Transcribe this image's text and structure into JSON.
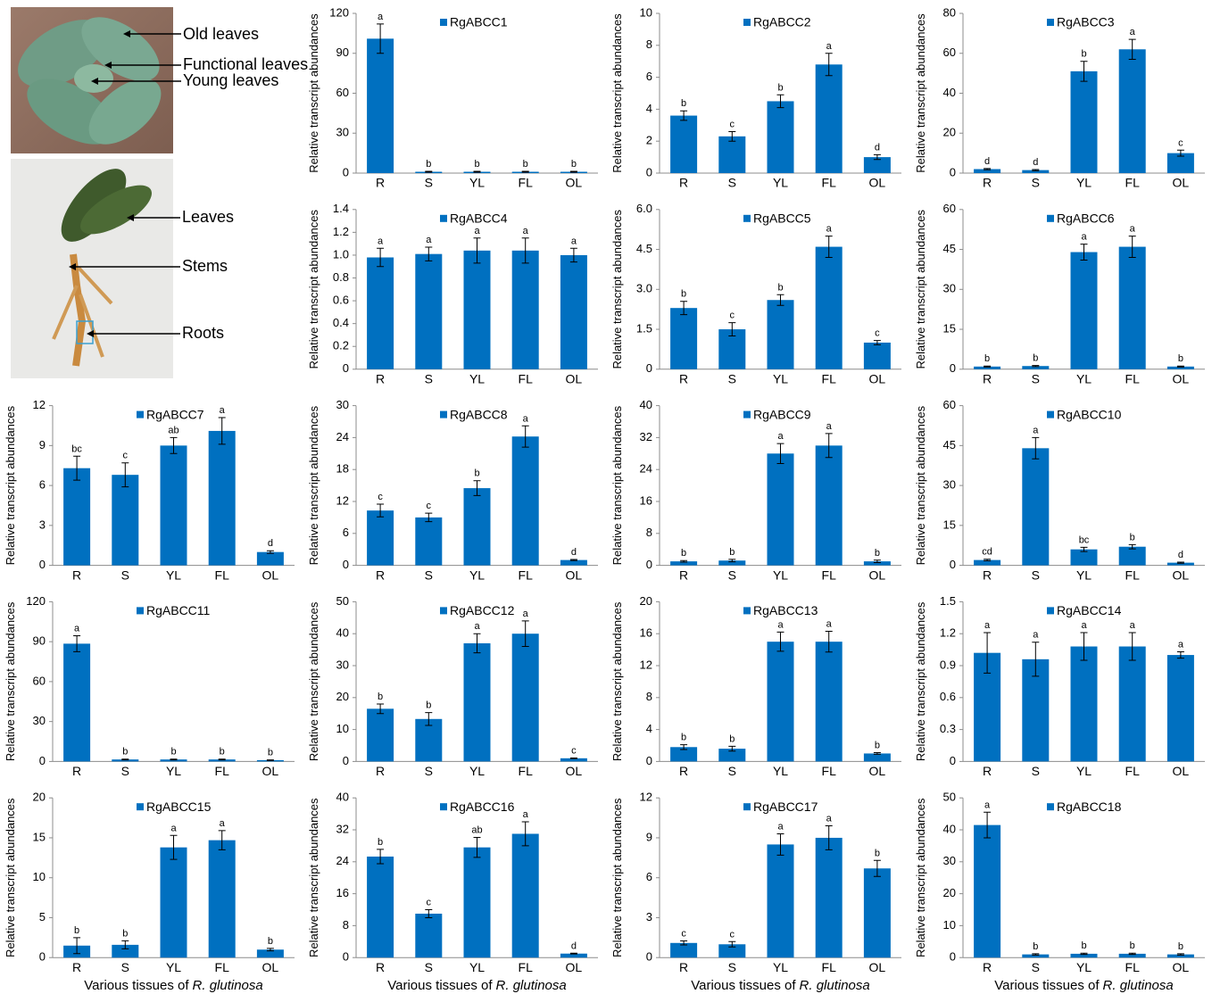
{
  "photo_labels": [
    "Old leaves",
    "Functional leaves",
    "Young leaves",
    "Leaves",
    "Stems",
    "Roots"
  ],
  "chart_data": [
    {
      "type": "bar",
      "legend": "RgABCC1",
      "ylabel": "Relative transcript abundances",
      "color": "#0070c0",
      "categories": [
        "R",
        "S",
        "YL",
        "FL",
        "OL"
      ],
      "values": [
        101,
        1,
        1,
        1,
        1
      ],
      "errors": [
        11,
        0.3,
        0.3,
        0.3,
        0.3
      ],
      "annotations": [
        "a",
        "b",
        "b",
        "b",
        "b"
      ],
      "ylim": [
        0,
        120
      ],
      "yticks": [
        0,
        30,
        60,
        90,
        120
      ]
    },
    {
      "type": "bar",
      "legend": "RgABCC2",
      "ylabel": "Relative transcript abundances",
      "color": "#0070c0",
      "categories": [
        "R",
        "S",
        "YL",
        "FL",
        "OL"
      ],
      "values": [
        3.6,
        2.3,
        4.5,
        6.8,
        1
      ],
      "errors": [
        0.3,
        0.3,
        0.4,
        0.7,
        0.15
      ],
      "annotations": [
        "b",
        "c",
        "b",
        "a",
        "d"
      ],
      "ylim": [
        0,
        10
      ],
      "yticks": [
        0,
        2,
        4,
        6,
        8,
        10
      ]
    },
    {
      "type": "bar",
      "legend": "RgABCC3",
      "ylabel": "Relative transcript abundances",
      "color": "#0070c0",
      "categories": [
        "R",
        "S",
        "YL",
        "FL",
        "OL"
      ],
      "values": [
        2,
        1.5,
        51,
        62,
        10
      ],
      "errors": [
        0.3,
        0.3,
        5,
        5,
        1.5
      ],
      "annotations": [
        "d",
        "d",
        "b",
        "a",
        "c"
      ],
      "ylim": [
        0,
        80
      ],
      "yticks": [
        0,
        20,
        40,
        60,
        80
      ]
    },
    {
      "type": "bar",
      "legend": "RgABCC4",
      "ylabel": "Relative transcript abundances",
      "color": "#0070c0",
      "categories": [
        "R",
        "S",
        "YL",
        "FL",
        "OL"
      ],
      "values": [
        0.98,
        1.01,
        1.04,
        1.04,
        1.0
      ],
      "errors": [
        0.08,
        0.06,
        0.11,
        0.11,
        0.06
      ],
      "annotations": [
        "a",
        "a",
        "a",
        "a",
        "a"
      ],
      "ylim": [
        0,
        1.4
      ],
      "yticks": [
        0,
        0.2,
        0.4,
        0.6,
        0.8,
        {
          "value": 1,
          "label": "1.0"
        },
        1.2,
        1.4
      ]
    },
    {
      "type": "bar",
      "legend": "RgABCC5",
      "ylabel": "Relative transcript abundances",
      "color": "#0070c0",
      "categories": [
        "R",
        "S",
        "YL",
        "FL",
        "OL"
      ],
      "values": [
        2.3,
        1.5,
        2.6,
        4.6,
        1
      ],
      "errors": [
        0.25,
        0.25,
        0.2,
        0.4,
        0.08
      ],
      "annotations": [
        "b",
        "c",
        "b",
        "a",
        "c"
      ],
      "ylim": [
        0,
        6
      ],
      "yticks": [
        0,
        1.5,
        {
          "value": 3,
          "label": "3.0"
        },
        4.5,
        {
          "value": 6,
          "label": "6.0"
        }
      ]
    },
    {
      "type": "bar",
      "legend": "RgABCC6",
      "ylabel": "Relative transcript abundances",
      "color": "#0070c0",
      "categories": [
        "R",
        "S",
        "YL",
        "FL",
        "OL"
      ],
      "values": [
        1,
        1.2,
        44,
        46,
        1
      ],
      "errors": [
        0.2,
        0.2,
        3,
        4,
        0.2
      ],
      "annotations": [
        "b",
        "b",
        "a",
        "a",
        "b"
      ],
      "ylim": [
        0,
        60
      ],
      "yticks": [
        0,
        15,
        30,
        45,
        60
      ]
    },
    {
      "type": "bar",
      "legend": "RgABCC7",
      "ylabel": "Relative transcript abundances",
      "color": "#0070c0",
      "categories": [
        "R",
        "S",
        "YL",
        "FL",
        "OL"
      ],
      "values": [
        7.3,
        6.8,
        9,
        10.1,
        1
      ],
      "errors": [
        0.9,
        0.9,
        0.6,
        1,
        0.1
      ],
      "annotations": [
        "bc",
        "c",
        "ab",
        "a",
        "d"
      ],
      "ylim": [
        0,
        12
      ],
      "yticks": [
        0,
        3,
        6,
        9,
        12
      ]
    },
    {
      "type": "bar",
      "legend": "RgABCC8",
      "ylabel": "Relative transcript abundances",
      "color": "#0070c0",
      "categories": [
        "R",
        "S",
        "YL",
        "FL",
        "OL"
      ],
      "values": [
        10.3,
        9,
        14.5,
        24.2,
        1
      ],
      "errors": [
        1.2,
        0.8,
        1.4,
        2,
        0.1
      ],
      "annotations": [
        "c",
        "c",
        "b",
        "a",
        "d"
      ],
      "ylim": [
        0,
        30
      ],
      "yticks": [
        0,
        6,
        12,
        18,
        24,
        30
      ]
    },
    {
      "type": "bar",
      "legend": "RgABCC9",
      "ylabel": "Relative transcript abundances",
      "color": "#0070c0",
      "categories": [
        "R",
        "S",
        "YL",
        "FL",
        "OL"
      ],
      "values": [
        1,
        1.2,
        28,
        30,
        1
      ],
      "errors": [
        0.2,
        0.3,
        2.5,
        3,
        0.3
      ],
      "annotations": [
        "b",
        "b",
        "a",
        "a",
        "b"
      ],
      "ylim": [
        0,
        40
      ],
      "yticks": [
        0,
        8,
        16,
        24,
        32,
        40
      ]
    },
    {
      "type": "bar",
      "legend": "RgABCC10",
      "ylabel": "Relative transcript abundances",
      "color": "#0070c0",
      "categories": [
        "R",
        "S",
        "YL",
        "FL",
        "OL"
      ],
      "values": [
        2,
        44,
        6,
        7,
        1
      ],
      "errors": [
        0.3,
        4,
        0.8,
        0.8,
        0.2
      ],
      "annotations": [
        "cd",
        "a",
        "bc",
        "b",
        "d"
      ],
      "ylim": [
        0,
        60
      ],
      "yticks": [
        0,
        15,
        30,
        45,
        60
      ]
    },
    {
      "type": "bar",
      "legend": "RgABCC11",
      "ylabel": "Relative transcript abundances",
      "color": "#0070c0",
      "categories": [
        "R",
        "S",
        "YL",
        "FL",
        "OL"
      ],
      "values": [
        88.5,
        1.5,
        1.5,
        1.5,
        1
      ],
      "errors": [
        6,
        0.3,
        0.3,
        0.3,
        0.2
      ],
      "annotations": [
        "a",
        "b",
        "b",
        "b",
        "b"
      ],
      "ylim": [
        0,
        120
      ],
      "yticks": [
        0,
        30,
        60,
        90,
        120
      ]
    },
    {
      "type": "bar",
      "legend": "RgABCC12",
      "ylabel": "Relative transcript abundances",
      "color": "#0070c0",
      "categories": [
        "R",
        "S",
        "YL",
        "FL",
        "OL"
      ],
      "values": [
        16.5,
        13.3,
        37,
        40,
        1
      ],
      "errors": [
        1.5,
        2,
        3,
        4,
        0.1
      ],
      "annotations": [
        "b",
        "b",
        "a",
        "a",
        "c"
      ],
      "ylim": [
        0,
        50
      ],
      "yticks": [
        0,
        10,
        20,
        30,
        40,
        50
      ]
    },
    {
      "type": "bar",
      "legend": "RgABCC13",
      "ylabel": "Relative transcript abundances",
      "color": "#0070c0",
      "categories": [
        "R",
        "S",
        "YL",
        "FL",
        "OL"
      ],
      "values": [
        1.8,
        1.6,
        15,
        15,
        1
      ],
      "errors": [
        0.3,
        0.3,
        1.2,
        1.3,
        0.1
      ],
      "annotations": [
        "b",
        "b",
        "a",
        "a",
        "b"
      ],
      "ylim": [
        0,
        20
      ],
      "yticks": [
        0,
        4,
        8,
        12,
        16,
        20
      ]
    },
    {
      "type": "bar",
      "legend": "RgABCC14",
      "ylabel": "Relative transcript abundances",
      "color": "#0070c0",
      "categories": [
        "R",
        "S",
        "YL",
        "FL",
        "OL"
      ],
      "values": [
        1.02,
        0.96,
        1.08,
        1.08,
        1.0
      ],
      "errors": [
        0.19,
        0.16,
        0.13,
        0.13,
        0.03
      ],
      "annotations": [
        "a",
        "a",
        "a",
        "a",
        "a"
      ],
      "ylim": [
        0,
        1.5
      ],
      "yticks": [
        0,
        0.3,
        0.6,
        0.9,
        1.2,
        1.5
      ]
    },
    {
      "type": "bar",
      "legend": "RgABCC15",
      "ylabel": "Relative transcript abundances",
      "color": "#0070c0",
      "categories": [
        "R",
        "S",
        "YL",
        "FL",
        "OL"
      ],
      "values": [
        1.5,
        1.6,
        13.8,
        14.7,
        1
      ],
      "errors": [
        1,
        0.5,
        1.5,
        1.2,
        0.15
      ],
      "annotations": [
        "b",
        "b",
        "a",
        "a",
        "b"
      ],
      "ylim": [
        0,
        20
      ],
      "yticks": [
        0,
        5,
        10,
        15,
        20
      ],
      "xlabel": [
        "Various tissues of",
        "R. glutinosa"
      ]
    },
    {
      "type": "bar",
      "legend": "RgABCC16",
      "ylabel": "Relative transcript abundances",
      "color": "#0070c0",
      "categories": [
        "R",
        "S",
        "YL",
        "FL",
        "OL"
      ],
      "values": [
        25.3,
        11,
        27.6,
        31,
        1
      ],
      "errors": [
        1.8,
        1,
        2.5,
        3,
        0.1
      ],
      "annotations": [
        "b",
        "c",
        "ab",
        "a",
        "d"
      ],
      "ylim": [
        0,
        40
      ],
      "yticks": [
        0,
        8,
        16,
        24,
        32,
        40
      ],
      "xlabel": [
        "Various tissues of",
        "R. glutinosa"
      ]
    },
    {
      "type": "bar",
      "legend": "RgABCC17",
      "ylabel": "Relative transcript abundances",
      "color": "#0070c0",
      "categories": [
        "R",
        "S",
        "YL",
        "FL",
        "OL"
      ],
      "values": [
        1.1,
        1,
        8.5,
        9,
        6.7
      ],
      "errors": [
        0.15,
        0.2,
        0.8,
        0.9,
        0.6
      ],
      "annotations": [
        "c",
        "c",
        "a",
        "a",
        "b"
      ],
      "ylim": [
        0,
        12
      ],
      "yticks": [
        0,
        3,
        6,
        9,
        12
      ],
      "xlabel": [
        "Various tissues of",
        "R. glutinosa"
      ]
    },
    {
      "type": "bar",
      "legend": "RgABCC18",
      "ylabel": "Relative transcript abundances",
      "color": "#0070c0",
      "categories": [
        "R",
        "S",
        "YL",
        "FL",
        "OL"
      ],
      "values": [
        41.5,
        1,
        1.2,
        1.2,
        1
      ],
      "errors": [
        4,
        0.2,
        0.2,
        0.2,
        0.2
      ],
      "annotations": [
        "a",
        "b",
        "b",
        "b",
        "b"
      ],
      "ylim": [
        0,
        50
      ],
      "yticks": [
        0,
        10,
        20,
        30,
        40,
        50
      ],
      "xlabel": [
        "Various tissues of",
        "R. glutinosa"
      ]
    }
  ]
}
